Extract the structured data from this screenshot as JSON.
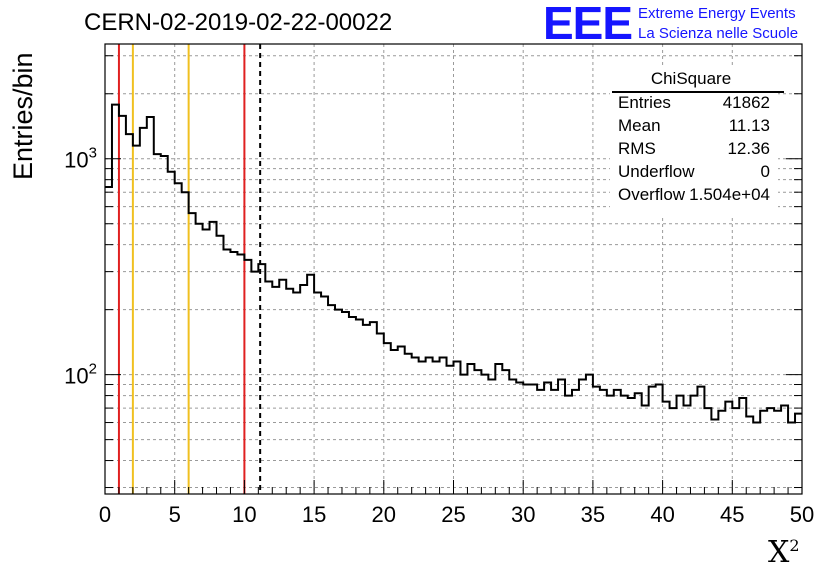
{
  "header": {
    "title": "CERN-02-2019-02-22-00022",
    "logo_text": "EEE",
    "logo_line1": "Extreme Energy Events",
    "logo_line2": "La Scienza nelle Scuole",
    "logo_color": "#1515ff"
  },
  "stats_box": {
    "name": "ChiSquare",
    "rows": [
      {
        "key": "Entries",
        "value": "41862"
      },
      {
        "key": "Mean",
        "value": "11.13"
      },
      {
        "key": "RMS",
        "value": "12.36"
      },
      {
        "key": "Underflow",
        "value": "0"
      },
      {
        "key": "Overflow",
        "value": "1.504e+04"
      }
    ]
  },
  "chart_data": {
    "type": "histogram",
    "xlabel": "X",
    "xlabel_sup": "2",
    "ylabel": "Entries/bin",
    "xlim": [
      0,
      50
    ],
    "ylim": [
      28,
      3400
    ],
    "yscale": "log",
    "grid": true,
    "bin_width": 0.5,
    "xticks": [
      "0",
      "5",
      "10",
      "15",
      "20",
      "25",
      "30",
      "35",
      "40",
      "45",
      "50"
    ],
    "yticks": [
      {
        "value": 100,
        "mantissa": "10",
        "exp": "2"
      },
      {
        "value": 1000,
        "mantissa": "10",
        "exp": "3"
      }
    ],
    "values": [
      740,
      1780,
      1580,
      1300,
      1150,
      1390,
      1560,
      1050,
      1030,
      870,
      770,
      700,
      560,
      500,
      470,
      510,
      440,
      380,
      370,
      360,
      340,
      300,
      325,
      270,
      255,
      275,
      250,
      240,
      260,
      290,
      240,
      230,
      210,
      200,
      195,
      185,
      180,
      170,
      175,
      155,
      140,
      130,
      135,
      125,
      120,
      115,
      120,
      115,
      120,
      110,
      115,
      100,
      112,
      105,
      100,
      95,
      112,
      105,
      95,
      92,
      90,
      90,
      85,
      92,
      85,
      95,
      80,
      85,
      95,
      100,
      88,
      85,
      80,
      85,
      80,
      78,
      82,
      72,
      88,
      90,
      75,
      70,
      80,
      72,
      80,
      88,
      70,
      62,
      68,
      75,
      70,
      78,
      64,
      60,
      68,
      70,
      68,
      72,
      60,
      66
    ],
    "vlines": [
      {
        "x": 1,
        "color": "#e02020",
        "style": "solid"
      },
      {
        "x": 2,
        "color": "#f0c020",
        "style": "solid"
      },
      {
        "x": 6,
        "color": "#f0c020",
        "style": "solid"
      },
      {
        "x": 10,
        "color": "#e02020",
        "style": "solid"
      },
      {
        "x": 11.13,
        "color": "#000000",
        "style": "dashed"
      }
    ],
    "line_color": "#000000"
  }
}
